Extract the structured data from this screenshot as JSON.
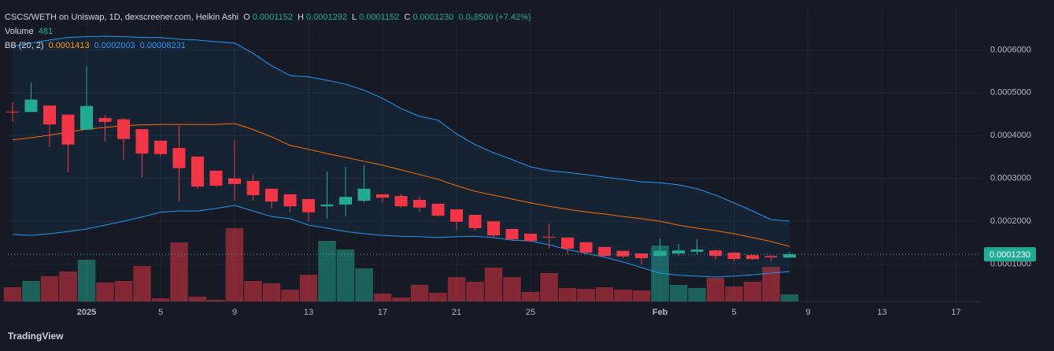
{
  "chart_data": {
    "type": "candlestick",
    "title": "CSCS/WETH on Uniswap, 1D, dexscreener.com, Heikin Ashi",
    "ohlc_keys": [
      "O",
      "H",
      "L",
      "C"
    ],
    "change": "0.0₅8500 (+7.42%)",
    "volume_name": "Volume",
    "bb_name": "BB (20, 2)",
    "brand": "TradingView",
    "up_color": "#22ab94",
    "down_color": "#f23645",
    "bb_band_color": "#2196f3",
    "bb_middle_color": "#ff6d00",
    "grid": true,
    "categories": [
      null,
      null,
      null,
      null,
      "2025",
      null,
      null,
      null,
      "5",
      null,
      null,
      null,
      "9",
      null,
      null,
      null,
      "13",
      null,
      null,
      null,
      "17",
      null,
      null,
      null,
      "21",
      null,
      null,
      null,
      "25",
      null,
      null,
      null,
      null,
      null,
      null,
      "Feb",
      null,
      null,
      null,
      "5",
      null,
      null,
      null,
      "9",
      null,
      null,
      null,
      "13",
      null,
      null,
      null,
      "17",
      null
    ],
    "open": [
      0.000456,
      0.000455,
      0.00047,
      0.000449,
      0.000414,
      0.000441,
      0.000438,
      0.000415,
      0.000388,
      0.000371,
      0.000351,
      0.000318,
      0.0003,
      0.000294,
      0.000276,
      0.000263,
      0.000252,
      0.000235,
      0.000239,
      0.000248,
      0.000263,
      0.000259,
      0.00025,
      0.000241,
      0.000228,
      0.000215,
      0.0002,
      0.000182,
      0.000171,
      0.000164,
      0.000162,
      0.000151,
      0.00014,
      0.000131,
      0.000125,
      0.000119,
      0.000125,
      0.000129,
      0.000132,
      0.000127,
      0.000121,
      0.000119,
      0.0001152,
      null,
      null,
      null,
      null,
      null,
      null,
      null,
      null,
      null,
      null
    ],
    "high": [
      0.000478,
      0.000524,
      0.00047,
      0.000449,
      0.000562,
      0.000448,
      0.000441,
      0.000415,
      0.000388,
      0.000423,
      0.000351,
      0.000318,
      0.00039,
      0.000309,
      0.000276,
      0.000263,
      0.000252,
      0.000316,
      0.000327,
      0.000331,
      0.000263,
      0.000263,
      0.000259,
      0.000241,
      0.000228,
      0.000215,
      0.0002,
      0.000182,
      0.000171,
      0.000195,
      0.000162,
      0.000151,
      0.00014,
      0.000131,
      0.000125,
      0.00016,
      0.000147,
      0.000158,
      0.000134,
      0.000127,
      0.000123,
      0.000121,
      0.0001292,
      null,
      null,
      null,
      null,
      null,
      null,
      null,
      null,
      null,
      null
    ],
    "low": [
      0.000432,
      0.000455,
      0.000373,
      0.000314,
      0.000414,
      0.000386,
      0.000344,
      0.000303,
      0.000352,
      0.000246,
      0.000276,
      0.000279,
      0.000248,
      0.000248,
      0.00023,
      0.000221,
      0.0002,
      0.000206,
      0.000211,
      0.000244,
      0.000243,
      0.000232,
      0.000221,
      0.000211,
      0.00018,
      0.000178,
      0.000163,
      0.000154,
      0.000151,
      0.000136,
      0.000123,
      0.000125,
      0.000116,
      0.000114,
      9.9e-05,
      0.000119,
      0.000119,
      0.000123,
      0.00011,
      0.000107,
      0.00011,
      0.000107,
      0.0001152,
      null,
      null,
      null,
      null,
      null,
      null,
      null,
      null,
      null,
      null
    ],
    "close": [
      0.000454,
      0.000484,
      0.000426,
      0.000379,
      0.000469,
      0.000432,
      0.000392,
      0.000358,
      0.000357,
      0.000324,
      0.000281,
      0.000283,
      0.000287,
      0.000261,
      0.000246,
      0.000235,
      0.000221,
      0.000239,
      0.000257,
      0.000276,
      0.000255,
      0.000235,
      0.000232,
      0.000213,
      0.000199,
      0.000184,
      0.000167,
      0.000158,
      0.000154,
      0.000163,
      0.000136,
      0.000127,
      0.000119,
      0.000118,
      0.000114,
      0.000131,
      0.000132,
      0.000134,
      0.000119,
      0.000112,
      0.000112,
      0.000116,
      0.000123,
      null,
      null,
      null,
      null,
      null,
      null,
      null,
      null,
      null,
      null
    ],
    "volume": [
      965,
      1394,
      1716,
      2037,
      2842,
      1287,
      1394,
      2413,
      214,
      4021,
      322,
      107,
      4987,
      1394,
      1233,
      804,
      1823,
      4129,
      3539,
      2252,
      536,
      268,
      1126,
      590,
      1662,
      1340,
      2306,
      1662,
      643,
      1930,
      912,
      858,
      965,
      804,
      751,
      3807,
      1126,
      912,
      1609,
      1019,
      1340,
      2359,
      481,
      null,
      null,
      null,
      null,
      null,
      null,
      null,
      null,
      null,
      null
    ],
    "volume_ylim": [
      0,
      20000
    ],
    "bb_upper": [
      0.000608,
      0.000616,
      0.000623,
      0.000629,
      0.000631,
      0.000632,
      0.000631,
      0.000629,
      0.000629,
      0.000625,
      0.000623,
      0.000619,
      0.000616,
      0.000592,
      0.000563,
      0.00054,
      0.000537,
      0.000529,
      0.00052,
      0.000506,
      0.000487,
      0.000463,
      0.000445,
      0.000436,
      0.000404,
      0.000379,
      0.00036,
      0.000344,
      0.000327,
      0.000318,
      0.000314,
      0.000309,
      0.000303,
      0.000298,
      0.000292,
      0.00029,
      0.000285,
      0.000276,
      0.000261,
      0.000243,
      0.000224,
      0.000204,
      0.0002003,
      null,
      null,
      null,
      null,
      null,
      null,
      null,
      null,
      null,
      null
    ],
    "bb_middle": [
      0.00039,
      0.000395,
      0.000401,
      0.000408,
      0.000415,
      0.000419,
      0.000423,
      0.000425,
      0.000426,
      0.000426,
      0.000426,
      0.000426,
      0.000428,
      0.000414,
      0.000397,
      0.000377,
      0.000368,
      0.000358,
      0.000349,
      0.00034,
      0.000331,
      0.00032,
      0.000309,
      0.000298,
      0.000283,
      0.00027,
      0.000261,
      0.000252,
      0.000243,
      0.000235,
      0.000228,
      0.000222,
      0.000217,
      0.000211,
      0.000206,
      0.0002,
      0.000191,
      0.000184,
      0.000178,
      0.000171,
      0.000162,
      0.000153,
      0.0001413,
      null,
      null,
      null,
      null,
      null,
      null,
      null,
      null,
      null,
      null
    ],
    "bb_lower": [
      0.000169,
      0.000167,
      0.000171,
      0.000176,
      0.000182,
      0.000191,
      0.0002,
      0.00021,
      0.000221,
      0.000224,
      0.000224,
      0.00023,
      0.000237,
      0.000224,
      0.000211,
      0.000206,
      0.000191,
      0.000184,
      0.000176,
      0.000171,
      0.000167,
      0.000165,
      0.000164,
      0.000162,
      0.000164,
      0.000165,
      0.000162,
      0.000156,
      0.000154,
      0.000145,
      0.000134,
      0.000125,
      0.000116,
      0.000105,
      9.2e-05,
      7.9e-05,
      7.4e-05,
      7.2e-05,
      7e-05,
      7.2e-05,
      7.5e-05,
      7.9e-05,
      8.231e-05,
      null,
      null,
      null,
      null,
      null,
      null,
      null,
      null,
      null,
      null
    ],
    "last_price": {
      "value": 0.000123,
      "label": "0.0001230"
    },
    "ylim": [
      1.3e-05,
      0.000698
    ],
    "yticks": [
      {
        "value": 0.0001,
        "label": "0.0001000"
      },
      {
        "value": 0.0002,
        "label": "0.0002000"
      },
      {
        "value": 0.0003,
        "label": "0.0003000"
      },
      {
        "value": 0.0004,
        "label": "0.0004000"
      },
      {
        "value": 0.0005,
        "label": "0.0005000"
      },
      {
        "value": 0.0006,
        "label": "0.0006000"
      }
    ]
  }
}
